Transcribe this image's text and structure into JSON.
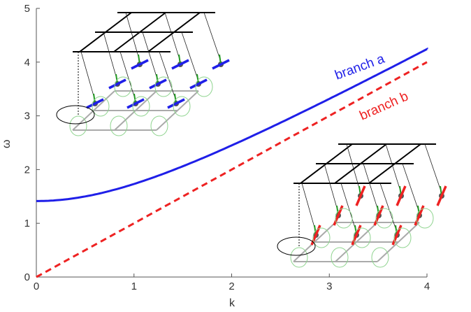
{
  "chart_data": {
    "type": "line",
    "title": "",
    "xlabel": "k",
    "ylabel": "ω",
    "xlim": [
      0,
      4
    ],
    "ylim": [
      0,
      5
    ],
    "xticks": [
      "0",
      "1",
      "2",
      "3",
      "4"
    ],
    "yticks": [
      "0",
      "1",
      "2",
      "3",
      "4",
      "5"
    ],
    "grid": false,
    "series": [
      {
        "name": "branch a",
        "color": "#1f1fe8",
        "style": "solid",
        "x": [
          0,
          0.25,
          0.5,
          0.75,
          1.0,
          1.25,
          1.5,
          1.75,
          2.0,
          2.25,
          2.5,
          2.75,
          3.0,
          3.25,
          3.5,
          3.75,
          4.0
        ],
        "values": [
          1.41,
          1.44,
          1.5,
          1.6,
          1.73,
          1.88,
          2.06,
          2.24,
          2.45,
          2.66,
          2.87,
          3.09,
          3.32,
          3.54,
          3.77,
          4.0,
          4.24
        ]
      },
      {
        "name": "branch b",
        "color": "#ee2222",
        "style": "dashed",
        "x": [
          0,
          4
        ],
        "values": [
          0,
          4.0
        ]
      }
    ],
    "annotations": [
      "branch a",
      "branch b"
    ]
  },
  "insets": [
    {
      "name": "spin-lattice-inset-branch-a",
      "arrow_color": "#1f1fe8"
    },
    {
      "name": "spin-lattice-inset-branch-b",
      "arrow_color": "#ee2222"
    }
  ]
}
